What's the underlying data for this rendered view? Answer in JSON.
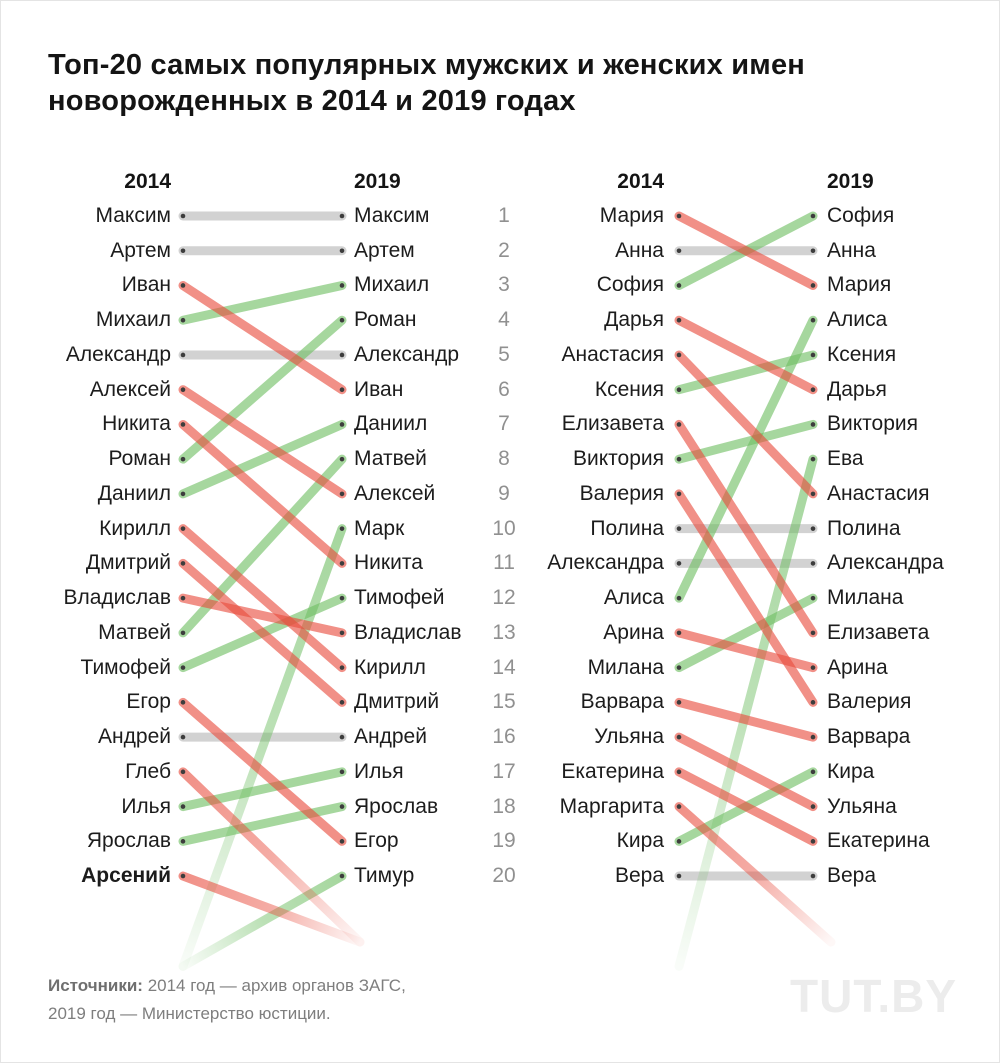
{
  "title": "Топ-20 самых популярных мужских и женских имен\nноворожденных в 2014 и 2019 годах",
  "footer": {
    "sources_label": "Источники:",
    "sources_text": "2014 год — архив органов ЗАГС,\n2019 год — Министерство юстиции.",
    "logo": "TUT.BY"
  },
  "ranks": [
    1,
    2,
    3,
    4,
    5,
    6,
    7,
    8,
    9,
    10,
    11,
    12,
    13,
    14,
    15,
    16,
    17,
    18,
    19,
    20
  ],
  "colors": {
    "up": "#6fbe63",
    "down": "#e84c3d",
    "same": "#d2d2d2",
    "line_opacity": 0.62,
    "dot": "#3d3d3d",
    "rank_text": "#909090"
  },
  "chart_data": [
    {
      "type": "slope",
      "group": "male-names",
      "columns": {
        "left": "2014",
        "right": "2019"
      },
      "moves": [
        {
          "name": "Максим",
          "rank_2014": 1,
          "rank_2019": 1
        },
        {
          "name": "Артем",
          "rank_2014": 2,
          "rank_2019": 2
        },
        {
          "name": "Иван",
          "rank_2014": 3,
          "rank_2019": 6
        },
        {
          "name": "Михаил",
          "rank_2014": 4,
          "rank_2019": 3
        },
        {
          "name": "Александр",
          "rank_2014": 5,
          "rank_2019": 5
        },
        {
          "name": "Алексей",
          "rank_2014": 6,
          "rank_2019": 9
        },
        {
          "name": "Никита",
          "rank_2014": 7,
          "rank_2019": 11
        },
        {
          "name": "Роман",
          "rank_2014": 8,
          "rank_2019": 4
        },
        {
          "name": "Даниил",
          "rank_2014": 9,
          "rank_2019": 7
        },
        {
          "name": "Кирилл",
          "rank_2014": 10,
          "rank_2019": 14
        },
        {
          "name": "Дмитрий",
          "rank_2014": 11,
          "rank_2019": 15
        },
        {
          "name": "Владислав",
          "rank_2014": 12,
          "rank_2019": 13
        },
        {
          "name": "Матвей",
          "rank_2014": 13,
          "rank_2019": 8
        },
        {
          "name": "Тимофей",
          "rank_2014": 14,
          "rank_2019": 12
        },
        {
          "name": "Егор",
          "rank_2014": 15,
          "rank_2019": 19
        },
        {
          "name": "Андрей",
          "rank_2014": 16,
          "rank_2019": 16
        },
        {
          "name": "Глеб",
          "rank_2014": 17,
          "rank_2019": null
        },
        {
          "name": "Илья",
          "rank_2014": 18,
          "rank_2019": 17
        },
        {
          "name": "Ярослав",
          "rank_2014": 19,
          "rank_2019": 18
        },
        {
          "name": "Арсений",
          "rank_2014": 20,
          "rank_2019": null,
          "bold": true
        },
        {
          "name": "Марк",
          "rank_2014": null,
          "rank_2019": 10
        },
        {
          "name": "Тимур",
          "rank_2014": null,
          "rank_2019": 20
        }
      ]
    },
    {
      "type": "slope",
      "group": "female-names",
      "columns": {
        "left": "2014",
        "right": "2019"
      },
      "moves": [
        {
          "name": "Мария",
          "rank_2014": 1,
          "rank_2019": 3
        },
        {
          "name": "Анна",
          "rank_2014": 2,
          "rank_2019": 2
        },
        {
          "name": "София",
          "rank_2014": 3,
          "rank_2019": 1
        },
        {
          "name": "Дарья",
          "rank_2014": 4,
          "rank_2019": 6
        },
        {
          "name": "Анастасия",
          "rank_2014": 5,
          "rank_2019": 9
        },
        {
          "name": "Ксения",
          "rank_2014": 6,
          "rank_2019": 5
        },
        {
          "name": "Елизавета",
          "rank_2014": 7,
          "rank_2019": 13
        },
        {
          "name": "Виктория",
          "rank_2014": 8,
          "rank_2019": 7
        },
        {
          "name": "Валерия",
          "rank_2014": 9,
          "rank_2019": 15
        },
        {
          "name": "Полина",
          "rank_2014": 10,
          "rank_2019": 10
        },
        {
          "name": "Александра",
          "rank_2014": 11,
          "rank_2019": 11
        },
        {
          "name": "Алиса",
          "rank_2014": 12,
          "rank_2019": 4
        },
        {
          "name": "Арина",
          "rank_2014": 13,
          "rank_2019": 14
        },
        {
          "name": "Милана",
          "rank_2014": 14,
          "rank_2019": 12
        },
        {
          "name": "Варвара",
          "rank_2014": 15,
          "rank_2019": 16
        },
        {
          "name": "Ульяна",
          "rank_2014": 16,
          "rank_2019": 18
        },
        {
          "name": "Екатерина",
          "rank_2014": 17,
          "rank_2019": 19
        },
        {
          "name": "Маргарита",
          "rank_2014": 18,
          "rank_2019": null
        },
        {
          "name": "Кира",
          "rank_2014": 19,
          "rank_2019": 17
        },
        {
          "name": "Вера",
          "rank_2014": 20,
          "rank_2019": 20
        },
        {
          "name": "Ева",
          "rank_2014": null,
          "rank_2019": 8
        }
      ]
    }
  ]
}
